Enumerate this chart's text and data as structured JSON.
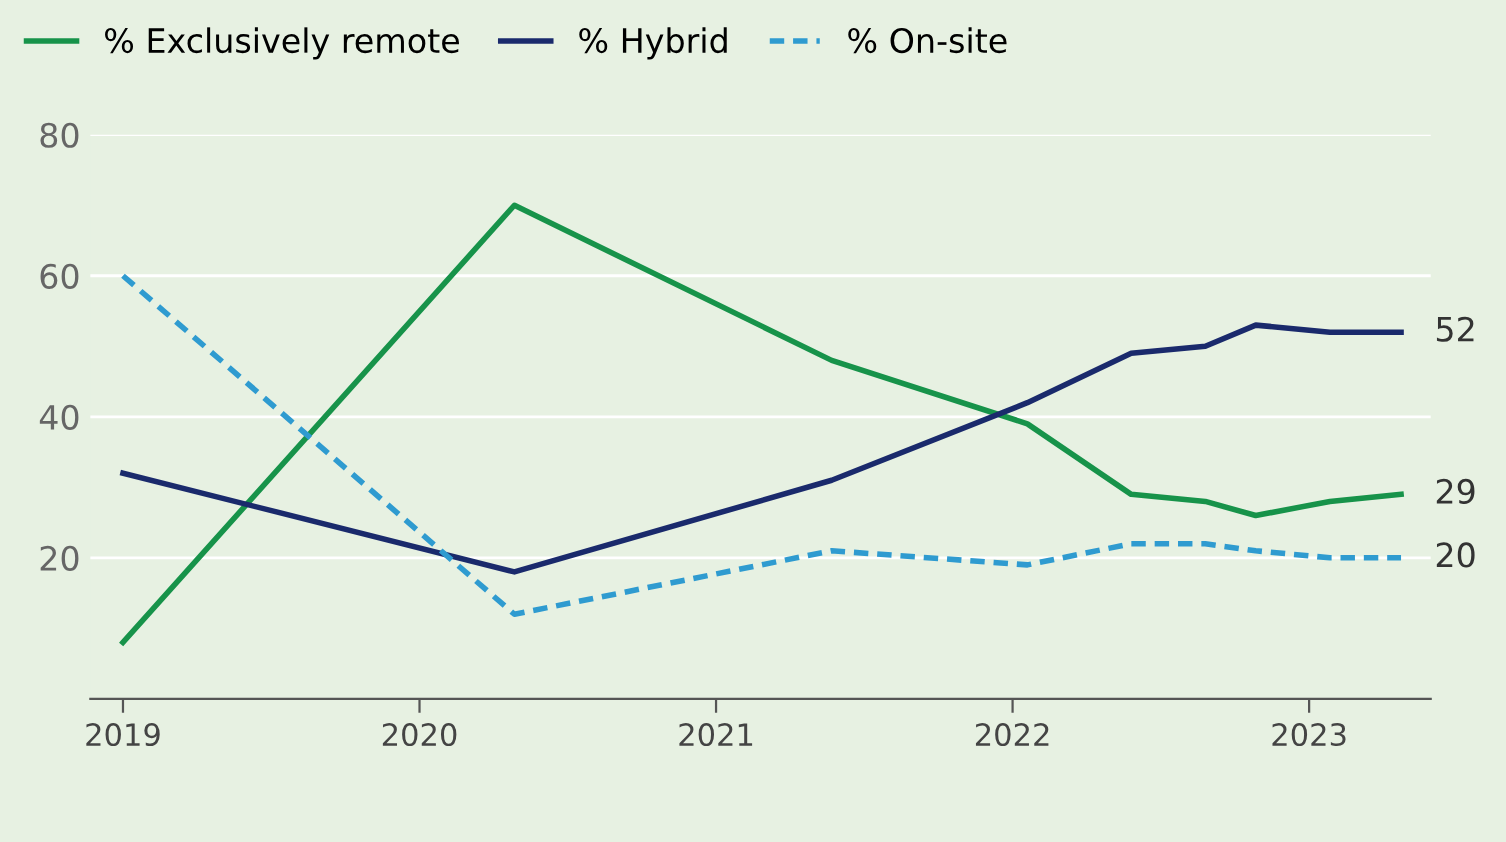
{
  "chart_data": {
    "type": "line",
    "x": [
      2019,
      2020.32,
      2021.39,
      2022.05,
      2022.4,
      2022.65,
      2022.82,
      2023.07,
      2023.31
    ],
    "series": [
      {
        "name": "% Exclusively remote",
        "color": "#17934a",
        "values": [
          8,
          70,
          48,
          39,
          29,
          28,
          26,
          28,
          29
        ],
        "value_labels": [
          null,
          null,
          null,
          null,
          null,
          null,
          null,
          null,
          "29"
        ]
      },
      {
        "name": "% Hybrid",
        "color": "#1a2a6c",
        "values": [
          32,
          18,
          31,
          42,
          49,
          50,
          53,
          52,
          52
        ],
        "value_labels": [
          null,
          null,
          null,
          null,
          null,
          null,
          null,
          null,
          "52"
        ]
      },
      {
        "name": "% On-site",
        "color": "#2f9bd0",
        "line_style": "dashed",
        "values": [
          60,
          12,
          21,
          19,
          22,
          22,
          21,
          20,
          20
        ],
        "value_labels": [
          null,
          null,
          null,
          null,
          null,
          null,
          null,
          null,
          "20"
        ]
      }
    ],
    "xlim": [
      2018.89,
      2023.41
    ],
    "xticks": [
      2019,
      2020,
      2021,
      2022,
      2023
    ],
    "ylim": [
      0,
      80
    ],
    "yticks": [
      20,
      40,
      60,
      80
    ],
    "grid": "y",
    "legend": "top left",
    "marker": "none"
  }
}
